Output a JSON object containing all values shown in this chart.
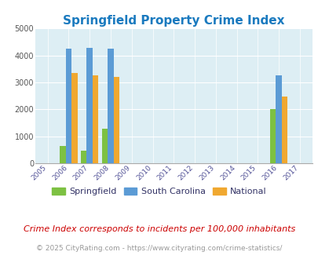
{
  "title": "Springfield Property Crime Index",
  "title_color": "#1a7abf",
  "title_fontsize": 11,
  "years": [
    2005,
    2006,
    2007,
    2008,
    2009,
    2010,
    2011,
    2012,
    2013,
    2014,
    2015,
    2016,
    2017
  ],
  "springfield": {
    "2006": 650,
    "2007": 450,
    "2008": 1280,
    "2016": 2010
  },
  "south_carolina": {
    "2006": 4250,
    "2007": 4280,
    "2008": 4250,
    "2016": 3250
  },
  "national": {
    "2006": 3350,
    "2007": 3250,
    "2008": 3200,
    "2016": 2460
  },
  "springfield_color": "#7dc142",
  "south_carolina_color": "#5b9bd5",
  "national_color": "#f0a830",
  "background_color": "#ddeef4",
  "ylim": [
    0,
    5000
  ],
  "yticks": [
    0,
    1000,
    2000,
    3000,
    4000,
    5000
  ],
  "bar_width": 0.28,
  "subtitle": "Crime Index corresponds to incidents per 100,000 inhabitants",
  "subtitle_color": "#cc0000",
  "subtitle_fontsize": 8,
  "copyright": "© 2025 CityRating.com - https://www.cityrating.com/crime-statistics/",
  "copyright_color": "#999999",
  "copyright_fontsize": 6.5,
  "legend_labels": [
    "Springfield",
    "South Carolina",
    "National"
  ],
  "legend_colors": [
    "#7dc142",
    "#5b9bd5",
    "#f0a830"
  ]
}
